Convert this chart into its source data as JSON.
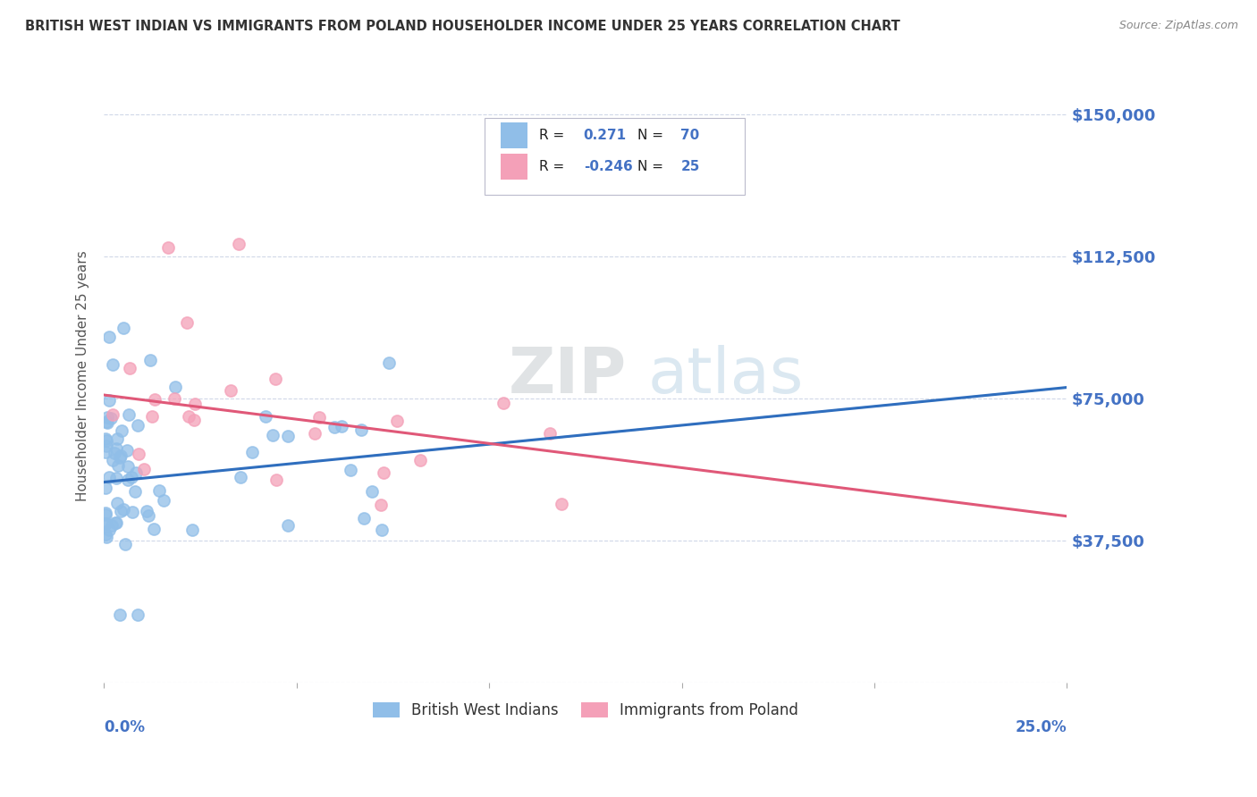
{
  "title": "BRITISH WEST INDIAN VS IMMIGRANTS FROM POLAND HOUSEHOLDER INCOME UNDER 25 YEARS CORRELATION CHART",
  "source": "Source: ZipAtlas.com",
  "ylabel": "Householder Income Under 25 years",
  "xmin": 0.0,
  "xmax": 0.25,
  "ymin": 0,
  "ymax": 162000,
  "yticks": [
    0,
    37500,
    75000,
    112500,
    150000
  ],
  "ytick_labels": [
    "",
    "$37,500",
    "$75,000",
    "$112,500",
    "$150,000"
  ],
  "gridline_color": "#d0d8e8",
  "background_color": "#ffffff",
  "bwi_color": "#90BEE8",
  "bwi_trend_color": "#2F6EBE",
  "bwi_trend_dashed_color": "#90BEE8",
  "pol_color": "#F4A0B8",
  "pol_trend_color": "#E05878",
  "tick_color": "#4472C4",
  "text_color": "#333333",
  "legend_text_color": "#4472C4",
  "bwi_R": "0.271",
  "bwi_N": "70",
  "pol_R": "-0.246",
  "pol_N": "25",
  "bwi_name": "British West Indians",
  "pol_name": "Immigrants from Poland",
  "watermark_color": "#c8d8e8",
  "source_color": "#888888",
  "bwi_trend_y0": 53000,
  "bwi_trend_y1": 78000,
  "pol_trend_y0": 76000,
  "pol_trend_y1": 44000
}
